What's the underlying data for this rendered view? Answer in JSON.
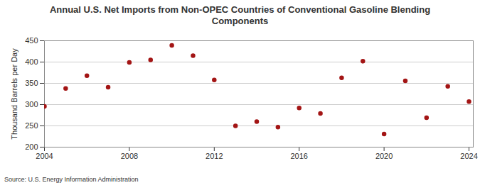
{
  "chart_data": {
    "type": "scatter",
    "title": "Annual U.S. Net Imports from Non-OPEC Countries of Conventional Gasoline Blending Components",
    "y_label": "Thousand Barrels per Day",
    "source": "Source: U.S. Energy Information Administration",
    "x": [
      2004,
      2005,
      2006,
      2007,
      2008,
      2009,
      2010,
      2011,
      2012,
      2013,
      2014,
      2015,
      2016,
      2017,
      2018,
      2019,
      2020,
      2021,
      2022,
      2023,
      2024
    ],
    "values": [
      296,
      338,
      368,
      341,
      399,
      405,
      439,
      415,
      358,
      250,
      260,
      247,
      292,
      279,
      363,
      402,
      231,
      356,
      269,
      343,
      307
    ],
    "color": "#a31515",
    "marker": "circle",
    "xlim": [
      2004,
      2024.2
    ],
    "xticks": [
      2004,
      2008,
      2012,
      2016,
      2020,
      2024
    ],
    "ylim": [
      200,
      450
    ],
    "yticks": [
      200,
      250,
      300,
      350,
      400,
      450
    ],
    "grid": true
  }
}
